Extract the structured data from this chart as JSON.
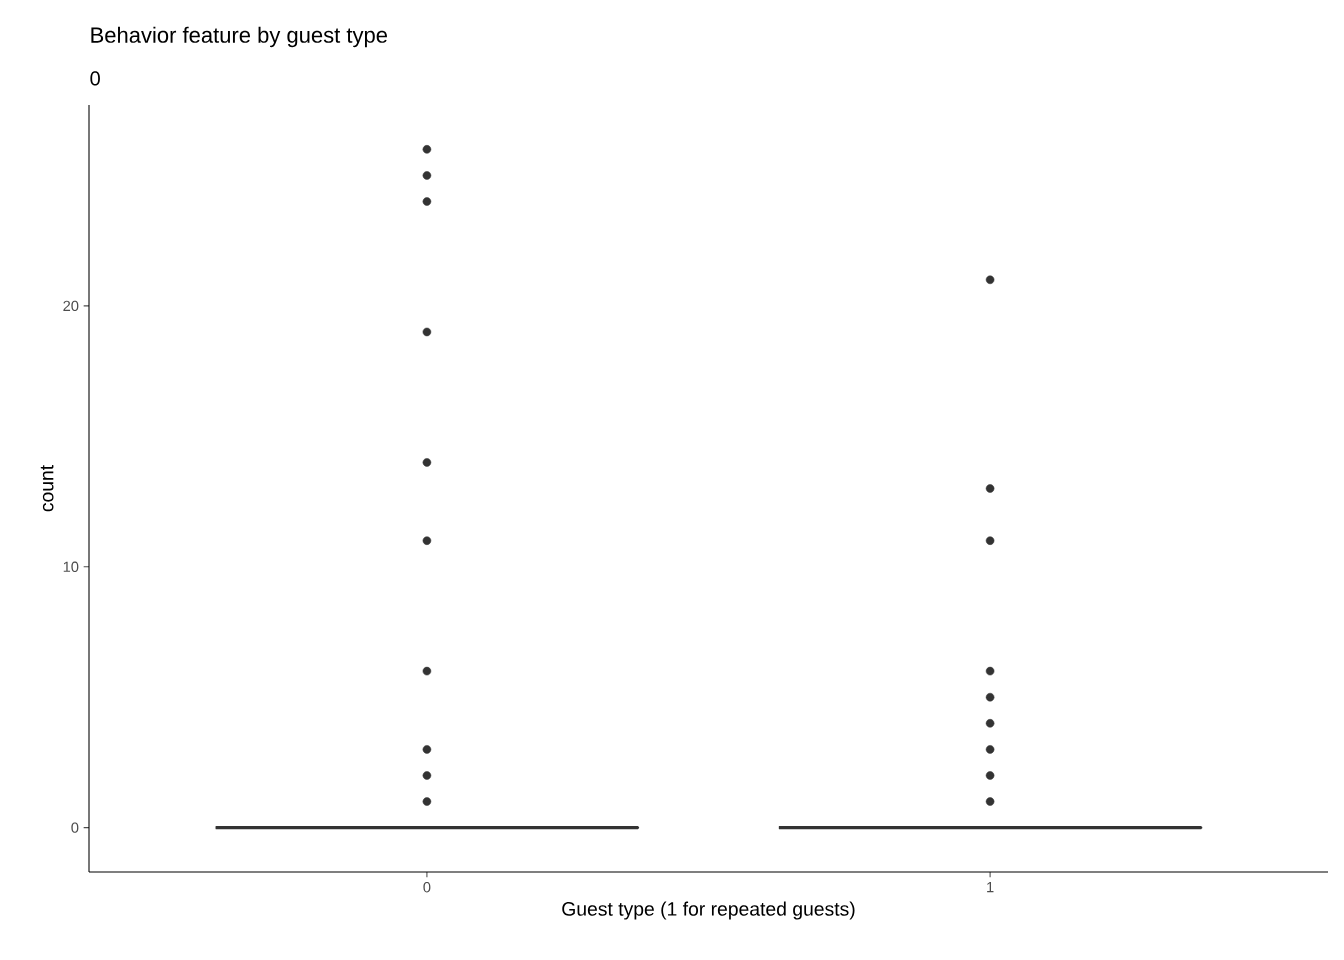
{
  "chart_data": {
    "type": "box",
    "title": "Behavior feature by guest type",
    "subtitle": "0",
    "xlabel": "Guest type (1 for repeated guests)",
    "ylabel": "count",
    "categories": [
      "0",
      "1"
    ],
    "boxes": [
      {
        "low": 0,
        "q1": 0,
        "median": 0,
        "q3": 0,
        "high": 0,
        "outliers": [
          26,
          25,
          24,
          19,
          14,
          11,
          6,
          3,
          2,
          1
        ]
      },
      {
        "low": 0,
        "q1": 0,
        "median": 0,
        "q3": 0,
        "high": 0,
        "outliers": [
          21,
          13,
          11,
          6,
          5,
          4,
          3,
          2,
          1
        ]
      }
    ],
    "color": "#333333",
    "ylim": [
      -1.7,
      27.7
    ],
    "yticks": [
      0,
      10,
      20
    ],
    "grid": false
  }
}
